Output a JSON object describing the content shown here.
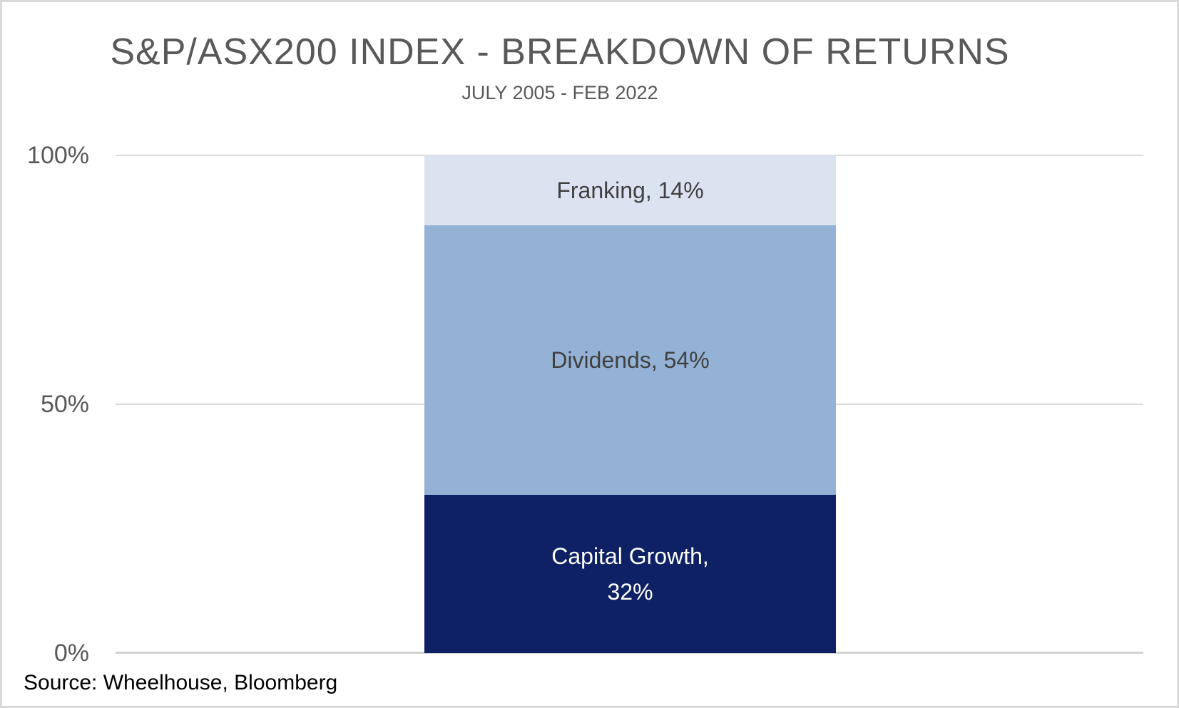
{
  "page": {
    "background": "#ffffff",
    "border_color": "#d9d9d9"
  },
  "chart_data": {
    "type": "bar",
    "stacked": true,
    "orientation": "vertical",
    "title": "S&P/ASX200 INDEX - BREAKDOWN OF RETURNS",
    "subtitle": "JULY 2005 - FEB 2022",
    "categories": [
      ""
    ],
    "series": [
      {
        "name": "Capital Growth",
        "value_pct": 32,
        "label": "Capital Growth, 32%",
        "label_line1": "Capital Growth,",
        "label_line2": "32%",
        "fill": "#0e2164",
        "label_color": "#ffffff"
      },
      {
        "name": "Dividends",
        "value_pct": 54,
        "label": "Dividends, 54%",
        "fill": "#93b2d6",
        "label_color": "#404040"
      },
      {
        "name": "Franking",
        "value_pct": 14,
        "label": "Franking, 14%",
        "fill": "#dbe3f0",
        "label_color": "#404040"
      }
    ],
    "ylim": [
      0,
      100
    ],
    "yticks": [
      {
        "label": "100%",
        "value": 100
      },
      {
        "label": "50%",
        "value": 50
      },
      {
        "label": "0%",
        "value": 0
      }
    ],
    "grid": true,
    "gridline_color": "#d9d9d9",
    "legend": "none",
    "title_color": "#595959",
    "axis_text_color": "#595959",
    "source": "Source: Wheelhouse, Bloomberg"
  }
}
